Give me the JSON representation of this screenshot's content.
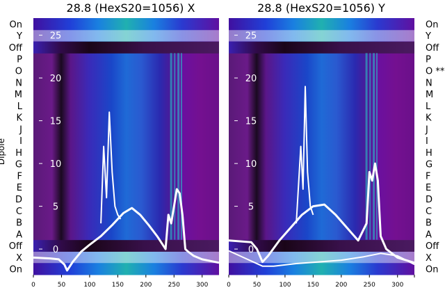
{
  "chart_data": [
    {
      "type": "heatmap",
      "title": "28.8 (HexS20=1056) X",
      "xlabel": "",
      "ylabel": "Dipole",
      "xlim": [
        0,
        330
      ],
      "ylim": [
        -3,
        27
      ],
      "xticks": [
        0,
        50,
        100,
        150,
        200,
        250,
        300
      ],
      "yticks": [
        0,
        5,
        10,
        15,
        20,
        25
      ],
      "row_labels": [
        "On",
        "X",
        "Off",
        "A",
        "B",
        "C",
        "D",
        "E",
        "F",
        "G",
        "H",
        "I",
        "J",
        "K",
        "L",
        "M",
        "N",
        "O",
        "P",
        "Off",
        "Y",
        "On"
      ],
      "series": [
        {
          "name": "",
          "x": [
            0,
            30,
            45,
            55,
            60,
            70,
            85,
            100,
            120,
            140,
            160,
            175,
            190,
            205,
            220,
            235,
            240,
            245,
            250,
            255,
            260,
            265,
            270,
            275,
            285,
            300,
            315,
            330
          ],
          "y": [
            -1,
            -1.1,
            -1.2,
            -1.8,
            -2.5,
            -1.5,
            -0.3,
            0.5,
            1.5,
            2.8,
            4.2,
            4.8,
            4,
            2.8,
            1.5,
            0,
            4,
            3,
            5,
            7,
            6.5,
            4,
            0,
            -0.3,
            -0.8,
            -1.2,
            -1.4,
            -1.6
          ]
        },
        {
          "name": "",
          "x": [
            120,
            125,
            130,
            135,
            140,
            145,
            150,
            155
          ],
          "y": [
            3,
            12,
            6,
            16,
            9,
            5,
            4,
            3.5
          ]
        }
      ]
    },
    {
      "type": "heatmap",
      "title": "28.8 (HexS20=1056) Y",
      "xlabel": "",
      "ylabel": "",
      "xlim": [
        0,
        330
      ],
      "ylim": [
        -3,
        27
      ],
      "xticks": [
        0,
        50,
        100,
        150,
        200,
        250,
        300,
        330
      ],
      "yticks": [
        0,
        5,
        10,
        15,
        20,
        25
      ],
      "row_labels": [
        "On",
        "X",
        "Off",
        "A",
        "B",
        "C",
        "D",
        "E",
        "F",
        "G",
        "H",
        "I",
        "J",
        "K",
        "L",
        "M",
        "N",
        "O **",
        "P",
        "Off",
        "Y",
        "On"
      ],
      "series": [
        {
          "name": "",
          "x": [
            0,
            40,
            50,
            60,
            70,
            90,
            110,
            130,
            150,
            170,
            190,
            210,
            230,
            245,
            250,
            255,
            260,
            265,
            270,
            280,
            300,
            330
          ],
          "y": [
            1,
            0.8,
            0,
            -1.5,
            -0.8,
            1,
            2.5,
            4,
            5,
            5.2,
            4,
            2.5,
            1,
            3,
            9,
            8,
            10,
            8,
            1.5,
            0,
            -1,
            -1.6
          ]
        },
        {
          "name": "",
          "x": [
            0,
            60,
            80,
            120,
            160,
            200,
            240,
            270,
            300,
            330
          ],
          "y": [
            -0.2,
            -2,
            -2,
            -1.7,
            -1.5,
            -1.3,
            -0.9,
            -0.5,
            -0.8,
            -1.8
          ]
        },
        {
          "name": "",
          "x": [
            120,
            128,
            132,
            136,
            140,
            145,
            150
          ],
          "y": [
            3,
            12,
            7,
            19,
            9,
            5,
            4
          ]
        }
      ]
    }
  ]
}
